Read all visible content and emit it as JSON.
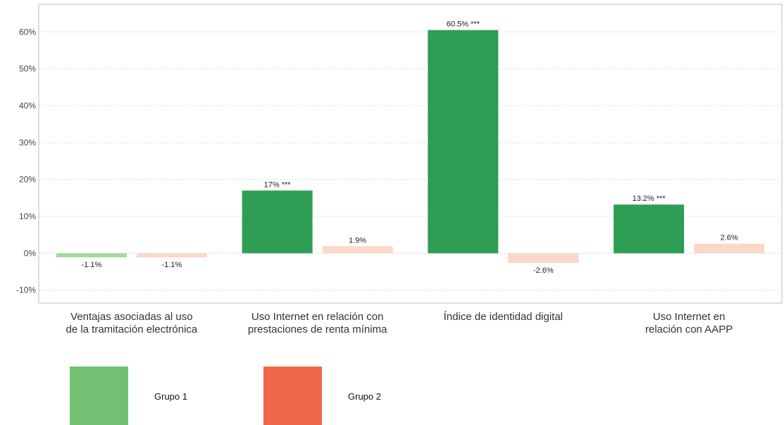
{
  "chart_data": {
    "type": "bar",
    "categories": [
      [
        "Ventajas asociadas al uso",
        "de la tramitación electrónica"
      ],
      [
        "Uso Internet en relación con",
        "prestaciones de renta mínima"
      ],
      [
        "Índice de identidad digital"
      ],
      [
        "Uso Internet en",
        "relación con AAPP"
      ]
    ],
    "series": [
      {
        "name": "Grupo 1",
        "values": [
          -1.1,
          17,
          60.5,
          13.2
        ],
        "labels": [
          "-1.1%",
          "17% ***",
          "60.5% ***",
          "13.2% ***"
        ],
        "significant": [
          false,
          true,
          true,
          true
        ],
        "color": "#2e9e55",
        "faded_color": "#a6d9a0",
        "legend_color": "#72c173"
      },
      {
        "name": "Grupo 2",
        "values": [
          -1.1,
          1.9,
          -2.6,
          2.6
        ],
        "labels": [
          "-1.1%",
          "1.9%",
          "-2.6%",
          "2.6%"
        ],
        "significant": [
          false,
          false,
          false,
          false
        ],
        "color": "#f0643f",
        "faded_color": "#fad7c7",
        "legend_color": "#f0684a"
      }
    ],
    "y_ticks": [
      "-10%",
      "0%",
      "10%",
      "20%",
      "30%",
      "40%",
      "50%",
      "60%"
    ],
    "y_tick_values": [
      -10,
      0,
      10,
      20,
      30,
      40,
      50,
      60
    ],
    "ylim": [
      -13.5,
      67.5
    ],
    "grid": true,
    "legend_position": "bottom-left",
    "title": "",
    "xlabel": "",
    "ylabel": ""
  }
}
